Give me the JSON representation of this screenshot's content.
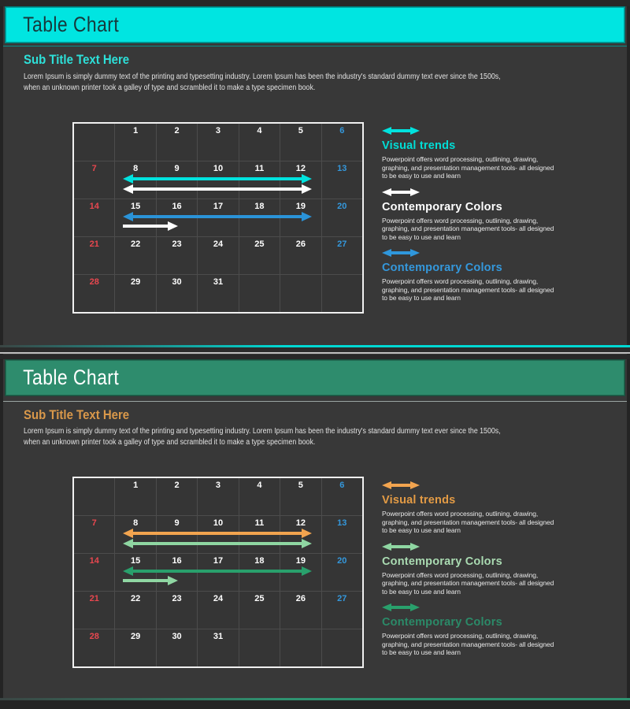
{
  "page": {
    "background": "#242424",
    "separator_color": "#bfbfbf"
  },
  "slides": [
    {
      "title": "Table Chart",
      "subtitle": "Sub Title Text Here",
      "body_lines": [
        "Lorem Ipsum is simply dummy text of the printing and typesetting industry. Lorem Ipsum has been the industry's standard dummy text ever since the 1500s,",
        "when an unknown printer took a galley of type and scrambled it to make a type specimen book."
      ],
      "theme": {
        "header_bg": "#00e5e1",
        "header_text": "#17393c",
        "subtitle_color": "#2de0d9",
        "accent_line": "#00d9d4",
        "slide_bg": "#383838"
      },
      "calendar": {
        "colors": {
          "start": "#e8474f",
          "end": "#3498dc",
          "day": "#ffffff"
        },
        "rows": [
          [
            {
              "t": ""
            },
            {
              "t": "1"
            },
            {
              "t": "2"
            },
            {
              "t": "3"
            },
            {
              "t": "4"
            },
            {
              "t": "5"
            },
            {
              "t": "6",
              "c": "end"
            }
          ],
          [
            {
              "t": "7",
              "c": "start"
            },
            {
              "t": "8"
            },
            {
              "t": "9"
            },
            {
              "t": "10"
            },
            {
              "t": "11"
            },
            {
              "t": "12"
            },
            {
              "t": "13",
              "c": "end"
            }
          ],
          [
            {
              "t": "14",
              "c": "start"
            },
            {
              "t": "15"
            },
            {
              "t": "16"
            },
            {
              "t": "17"
            },
            {
              "t": "18"
            },
            {
              "t": "19"
            },
            {
              "t": "20",
              "c": "end"
            }
          ],
          [
            {
              "t": "21",
              "c": "start"
            },
            {
              "t": "22"
            },
            {
              "t": "23"
            },
            {
              "t": "24"
            },
            {
              "t": "25"
            },
            {
              "t": "26"
            },
            {
              "t": "27",
              "c": "end"
            }
          ],
          [
            {
              "t": "28",
              "c": "start"
            },
            {
              "t": "29"
            },
            {
              "t": "30"
            },
            {
              "t": "31"
            },
            {
              "t": ""
            },
            {
              "t": ""
            },
            {
              "t": ""
            }
          ]
        ],
        "arrows": [
          {
            "cells": "8-12",
            "type": "double",
            "color": "#00e2de"
          },
          {
            "cells": "8-12",
            "type": "double",
            "color": "#ffffff"
          },
          {
            "cells": "15-19",
            "type": "double",
            "color": "#2a93d8"
          },
          {
            "cells": "15-16",
            "type": "right",
            "color": "#ffffff"
          }
        ]
      },
      "legend": [
        {
          "title": "Visual trends",
          "color": "#00ddd6",
          "arrow_color": "#00e2de",
          "desc_lines": [
            "Powerpoint offers word processing, outlining, drawing,",
            "graphing, and presentation management tools- all designed",
            "to be easy to use and learn"
          ]
        },
        {
          "title": "Contemporary Colors",
          "color": "#ffffff",
          "arrow_color": "#ffffff",
          "desc_lines": [
            "Powerpoint offers word processing, outlining, drawing,",
            "graphing, and presentation management tools- all designed",
            "to be easy to use and learn"
          ]
        },
        {
          "title": "Contemporary Colors",
          "color": "#3498dc",
          "arrow_color": "#2f97dc",
          "desc_lines": [
            "Powerpoint offers word processing, outlining, drawing,",
            "graphing, and presentation management tools- all designed",
            "to be easy to use and learn"
          ]
        }
      ]
    },
    {
      "title": "Table Chart",
      "subtitle": "Sub Title Text Here",
      "body_lines": [
        "Lorem Ipsum is simply dummy text of the printing and typesetting industry. Lorem Ipsum has been the industry's standard dummy text ever since the 1500s,",
        "when an unknown printer took a galley of type and scrambled it to make a type specimen book."
      ],
      "theme": {
        "header_bg": "#2e8c6d",
        "header_text": "#ffffff",
        "subtitle_color": "#d9984a",
        "accent_line": "#2e9270",
        "slide_bg": "#383838"
      },
      "calendar": {
        "colors": {
          "start": "#e8474f",
          "end": "#3498dc",
          "day": "#ffffff"
        },
        "rows": [
          [
            {
              "t": ""
            },
            {
              "t": "1"
            },
            {
              "t": "2"
            },
            {
              "t": "3"
            },
            {
              "t": "4"
            },
            {
              "t": "5"
            },
            {
              "t": "6",
              "c": "end"
            }
          ],
          [
            {
              "t": "7",
              "c": "start"
            },
            {
              "t": "8"
            },
            {
              "t": "9"
            },
            {
              "t": "10"
            },
            {
              "t": "11"
            },
            {
              "t": "12"
            },
            {
              "t": "13",
              "c": "end"
            }
          ],
          [
            {
              "t": "14",
              "c": "start"
            },
            {
              "t": "15"
            },
            {
              "t": "16"
            },
            {
              "t": "17"
            },
            {
              "t": "18"
            },
            {
              "t": "19"
            },
            {
              "t": "20",
              "c": "end"
            }
          ],
          [
            {
              "t": "21",
              "c": "start"
            },
            {
              "t": "22"
            },
            {
              "t": "23"
            },
            {
              "t": "24"
            },
            {
              "t": "25"
            },
            {
              "t": "26"
            },
            {
              "t": "27",
              "c": "end"
            }
          ],
          [
            {
              "t": "28",
              "c": "start"
            },
            {
              "t": "29"
            },
            {
              "t": "30"
            },
            {
              "t": "31"
            },
            {
              "t": ""
            },
            {
              "t": ""
            },
            {
              "t": ""
            }
          ]
        ],
        "arrows": [
          {
            "cells": "8-12",
            "type": "double",
            "color": "#f2a44f"
          },
          {
            "cells": "8-12",
            "type": "double",
            "color": "#8fd6a2"
          },
          {
            "cells": "15-19",
            "type": "double",
            "color": "#29a06c"
          },
          {
            "cells": "15-16",
            "type": "right",
            "color": "#8fd6a2"
          }
        ]
      },
      "legend": [
        {
          "title": "Visual trends",
          "color": "#e39b45",
          "arrow_color": "#f2a44f",
          "desc_lines": [
            "Powerpoint offers word processing, outlining, drawing,",
            "graphing, and presentation management tools- all designed",
            "to be easy to use and learn"
          ]
        },
        {
          "title": "Contemporary Colors",
          "color": "#aadbb2",
          "arrow_color": "#8fd6a2",
          "desc_lines": [
            "Powerpoint offers word processing, outlining, drawing,",
            "graphing, and presentation management tools- all designed",
            "to be easy to use and learn"
          ]
        },
        {
          "title": "Contemporary Colors",
          "color": "#2b8a68",
          "arrow_color": "#29a06c",
          "desc_lines": [
            "Powerpoint offers word processing, outlining, drawing,",
            "graphing, and presentation management tools- all designed",
            "to be easy to use and learn"
          ]
        }
      ]
    }
  ]
}
